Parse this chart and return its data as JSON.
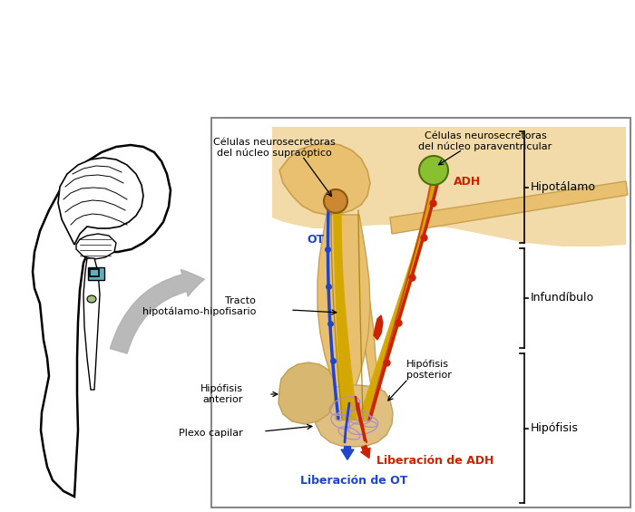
{
  "bg_color": "#ffffff",
  "hypothalamus_bg": "#f2dba8",
  "nerve_yellow": "#d4a800",
  "nerve_yellow2": "#e8c840",
  "nerve_red": "#cc2200",
  "nerve_blue": "#2244cc",
  "nerve_darkblue": "#1133aa",
  "pituitary_color": "#e8c888",
  "pituitary_dark": "#d4a860",
  "plexo_color": "#c8a0c0",
  "green_nucleus": "#88c030",
  "orange_nucleus": "#cc8830",
  "arrow_gray": "#b0b0b0",
  "labels": {
    "celulas_supraoptico": "Células neurosecretoras\ndel núcleo supraóptico",
    "celulas_paraventricular": "Células neurosecretoras\ndel núcleo paraventricular",
    "hipotalamo": "Hipotálamo",
    "infundibulo": "Infundíbulo",
    "hipofisis": "Hipófisis",
    "tracto": "Tracto\nhipotálamo-hipofisario",
    "hipofisis_posterior": "Hipófisis\nposterior",
    "hipofisis_anterior": "Hipófisis\nanterior",
    "plexo_capilar": "Plexo capilar",
    "liberacion_adh": "Liberación de ADH",
    "liberacion_ot": "Liberación de OT",
    "ot": "OT",
    "adh": "ADH"
  },
  "label_colors": {
    "liberacion_adh": "#cc2200",
    "liberacion_ot": "#2244cc",
    "adh": "#cc2200",
    "ot": "#2244cc"
  }
}
